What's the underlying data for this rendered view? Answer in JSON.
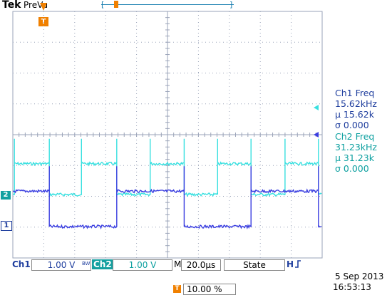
{
  "header": {
    "brand": "Tek",
    "mode": "PreVu",
    "record_left": "[",
    "record_right": "]"
  },
  "trigger_marker": "T",
  "colors": {
    "ch1": "#3a3ee0",
    "ch2": "#38e0e0",
    "grid": "#9aa3b8",
    "accent": "#f08000"
  },
  "measurements": {
    "ch1": {
      "title": "Ch1 Freq",
      "value": "15.62kHz",
      "mean": "µ 15.62k",
      "sigma": "σ 0.000"
    },
    "ch2": {
      "title": "Ch2 Freq",
      "value": "31.23kHz",
      "mean": "µ 31.23k",
      "sigma": "σ 0.000"
    }
  },
  "channel_markers": {
    "ch1": "1",
    "ch2": "2"
  },
  "status_bar": {
    "ch1_label": "Ch1",
    "ch1_scale": "1.00 V",
    "bw_label": "BW",
    "ch2_label": "Ch2",
    "ch2_scale": "1.00 V",
    "timebase_prefix": "M",
    "timebase": "20.0µs",
    "trigger_type": "State",
    "trigger_slope": "H",
    "trigger_pos_icon": "T",
    "trigger_position": "10.00 %",
    "date": "5 Sep  2013",
    "time": "16:53:13"
  },
  "chart_data": {
    "type": "line",
    "time_per_div_us": 20,
    "volts_per_div": 1.0,
    "series": [
      {
        "name": "Ch1",
        "frequency_khz": 15.62,
        "high_divs": 1.15,
        "low_divs": 0.0,
        "transitions_div": [
          1.18,
          3.36,
          5.54,
          7.7,
          9.88
        ]
      },
      {
        "name": "Ch2",
        "frequency_khz": 31.23,
        "high_divs": 1.0,
        "low_divs": 0.0,
        "transitions_div": [
          0.05,
          1.18,
          2.22,
          3.36,
          4.44,
          5.54,
          6.62,
          7.7,
          8.8,
          9.88
        ]
      }
    ]
  }
}
